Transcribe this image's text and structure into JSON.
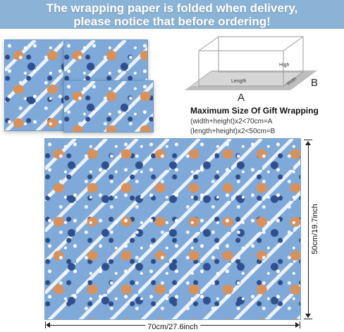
{
  "banner": {
    "line1": "The wrapping paper is folded when delivery,",
    "line2": "please notice that before ordering!"
  },
  "box": {
    "high_label": "High",
    "length_label": "Length",
    "width_label": "Width",
    "label_a": "A",
    "label_b": "B"
  },
  "size_info": {
    "title": "Maximum Size Of Gift Wrapping",
    "formula_a": "(width+height)x2<70cm=A",
    "formula_b": "(length+height)x2<50cm=B"
  },
  "dimensions": {
    "height_label": "50cm/19.7inch",
    "width_label": "70cm/27.6inch"
  },
  "colors": {
    "banner": "#8bb3d6",
    "paper": "#7fa9d8"
  }
}
